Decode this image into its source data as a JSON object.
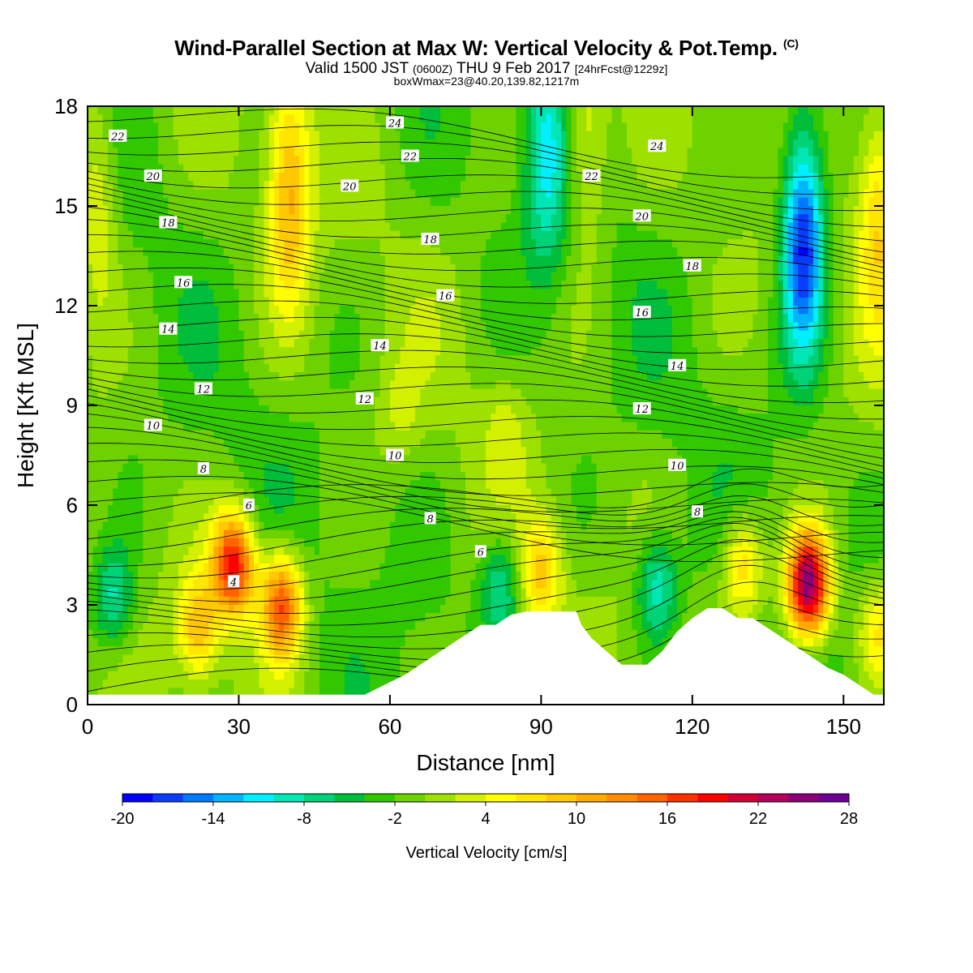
{
  "header": {
    "title": "Wind-Parallel Section at Max W: Vertical Velocity & Pot.Temp.",
    "copyright": "(C)",
    "valid_prefix": "Valid 1500 JST",
    "valid_utc": "(0600Z)",
    "valid_date": "THU 9 Feb 2017",
    "forecast": "[24hrFcst@1229z]",
    "boxwmax": "boxWmax=23@40.20,139.82,1217m"
  },
  "chart_data": {
    "type": "heatmap",
    "title": "Wind-Parallel Section at Max W: Vertical Velocity & Pot.Temp.",
    "xlabel": "Distance [nm]",
    "ylabel": "Height [Kft MSL]",
    "xlim": [
      0,
      158
    ],
    "ylim": [
      0,
      18
    ],
    "xticks": [
      "0",
      "30",
      "60",
      "90",
      "120",
      "150"
    ],
    "yticks": [
      "0",
      "3",
      "6",
      "9",
      "12",
      "15",
      "18"
    ],
    "colorbar": {
      "label": "Vertical Velocity [cm/s]",
      "min": -20,
      "max": 28,
      "step": 2,
      "tick_labels": [
        "-20",
        "-14",
        "-8",
        "-2",
        "4",
        "10",
        "16",
        "22",
        "28"
      ],
      "colors": [
        "#0000ff",
        "#0a3cff",
        "#0078ff",
        "#00b4ff",
        "#00f0ff",
        "#00e6b4",
        "#00d278",
        "#00be3c",
        "#32c800",
        "#6ed200",
        "#9ee000",
        "#d2f000",
        "#ffff00",
        "#ffe600",
        "#ffc800",
        "#ffaa00",
        "#ff8c00",
        "#ff6400",
        "#ff3200",
        "#ff0000",
        "#d20032",
        "#b4005a",
        "#8c0078",
        "#6e0096"
      ]
    },
    "vertical_velocity_features": [
      {
        "x": 40,
        "y": 15.5,
        "w": 11
      },
      {
        "x": 29,
        "y": 4.2,
        "w": 20
      },
      {
        "x": 38.5,
        "y": 3.0,
        "w": 18
      },
      {
        "x": 22,
        "y": 2.3,
        "w": 10
      },
      {
        "x": 130,
        "y": 4.2,
        "w": 10
      },
      {
        "x": 143,
        "y": 3.6,
        "w": 27
      },
      {
        "x": 142,
        "y": 14,
        "w": -18
      },
      {
        "x": 91,
        "y": 16.5,
        "w": -8
      },
      {
        "x": 5,
        "y": 3.2,
        "w": -8
      },
      {
        "x": 113,
        "y": 3.5,
        "w": -9
      },
      {
        "x": 82,
        "y": 3.6,
        "w": -8
      },
      {
        "x": 62,
        "y": 8.8,
        "w": 3
      },
      {
        "x": 83,
        "y": 8.3,
        "w": 3
      },
      {
        "x": 2,
        "y": 15,
        "w": 6
      },
      {
        "x": 157,
        "y": 15,
        "w": 9
      },
      {
        "x": 157,
        "y": 2.2,
        "w": 8
      },
      {
        "x": 90,
        "y": 4.0,
        "w": 9
      },
      {
        "x": 99,
        "y": 17,
        "w": 6
      }
    ],
    "terrain_profile": {
      "x": [
        0,
        55,
        59,
        63,
        66,
        69,
        72,
        75,
        78,
        81,
        84,
        87,
        90,
        97,
        98,
        100,
        103,
        106,
        111,
        114,
        117,
        120,
        123,
        126,
        129,
        132,
        135,
        138,
        141,
        144,
        147,
        150,
        153,
        156,
        158
      ],
      "y": [
        0.3,
        0.3,
        0.6,
        0.9,
        1.2,
        1.5,
        1.8,
        2.1,
        2.4,
        2.4,
        2.7,
        2.8,
        2.8,
        2.8,
        2.4,
        2.0,
        1.6,
        1.2,
        1.2,
        1.6,
        2.2,
        2.6,
        2.9,
        2.9,
        2.6,
        2.6,
        2.3,
        2.0,
        1.7,
        1.4,
        1.1,
        0.9,
        0.6,
        0.3,
        0.3
      ]
    },
    "potential_temperature_labels": [
      {
        "text": "22",
        "x": 6,
        "y": 17.1
      },
      {
        "text": "20",
        "x": 13,
        "y": 15.9
      },
      {
        "text": "18",
        "x": 16,
        "y": 14.5
      },
      {
        "text": "16",
        "x": 19,
        "y": 12.7
      },
      {
        "text": "14",
        "x": 16,
        "y": 11.3
      },
      {
        "text": "12",
        "x": 23,
        "y": 9.5
      },
      {
        "text": "10",
        "x": 13,
        "y": 8.4
      },
      {
        "text": "8",
        "x": 23,
        "y": 7.1
      },
      {
        "text": "6",
        "x": 32,
        "y": 6.0
      },
      {
        "text": "4",
        "x": 29,
        "y": 3.7
      },
      {
        "text": "24",
        "x": 61,
        "y": 17.5
      },
      {
        "text": "22",
        "x": 64,
        "y": 16.5
      },
      {
        "text": "20",
        "x": 52,
        "y": 15.6
      },
      {
        "text": "18",
        "x": 68,
        "y": 14.0
      },
      {
        "text": "16",
        "x": 71,
        "y": 12.3
      },
      {
        "text": "14",
        "x": 58,
        "y": 10.8
      },
      {
        "text": "12",
        "x": 55,
        "y": 9.2
      },
      {
        "text": "10",
        "x": 61,
        "y": 7.5
      },
      {
        "text": "8",
        "x": 68,
        "y": 5.6
      },
      {
        "text": "6",
        "x": 78,
        "y": 4.6
      },
      {
        "text": "24",
        "x": 113,
        "y": 16.8
      },
      {
        "text": "22",
        "x": 100,
        "y": 15.9
      },
      {
        "text": "20",
        "x": 110,
        "y": 14.7
      },
      {
        "text": "18",
        "x": 120,
        "y": 13.2
      },
      {
        "text": "16",
        "x": 110,
        "y": 11.8
      },
      {
        "text": "14",
        "x": 117,
        "y": 10.2
      },
      {
        "text": "12",
        "x": 110,
        "y": 8.9
      },
      {
        "text": "10",
        "x": 117,
        "y": 7.2
      },
      {
        "text": "8",
        "x": 121,
        "y": 5.8
      }
    ]
  }
}
